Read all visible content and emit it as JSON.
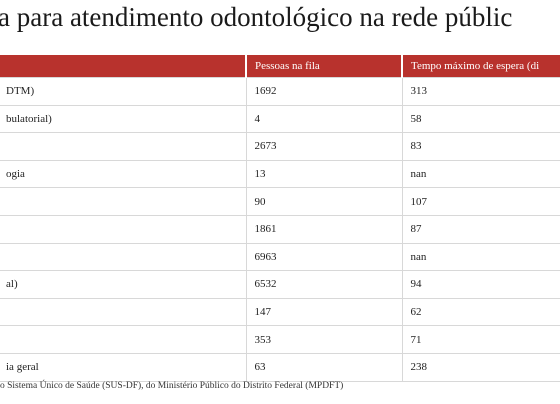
{
  "header": {
    "title": "a para atendimento odontológico na rede públic"
  },
  "table": {
    "columns": [
      "Pessoas na fila",
      "Tempo máximo de espera (di"
    ],
    "rows": [
      {
        "label": "DTM)",
        "values": [
          1692,
          313
        ]
      },
      {
        "label": "bulatorial)",
        "values": [
          4,
          58
        ]
      },
      {
        "values": [
          2673,
          83
        ]
      },
      {
        "label": "ogia",
        "values": [
          13,
          "nan"
        ]
      },
      {
        "values": [
          90,
          107
        ]
      },
      {
        "values": [
          1861,
          87
        ]
      },
      {
        "values": [
          6963,
          "nan"
        ]
      },
      {
        "label": "al)",
        "values": [
          6532,
          94
        ]
      },
      {
        "values": [
          147,
          62
        ]
      },
      {
        "values": [
          353,
          71
        ]
      },
      {
        "label": "ia geral",
        "values": [
          63,
          238
        ]
      }
    ]
  },
  "footer": {
    "source": "o Sistema Único de Saúde (SUS-DF), do Ministério Público do Distrito Federal (MPDFT)"
  }
}
